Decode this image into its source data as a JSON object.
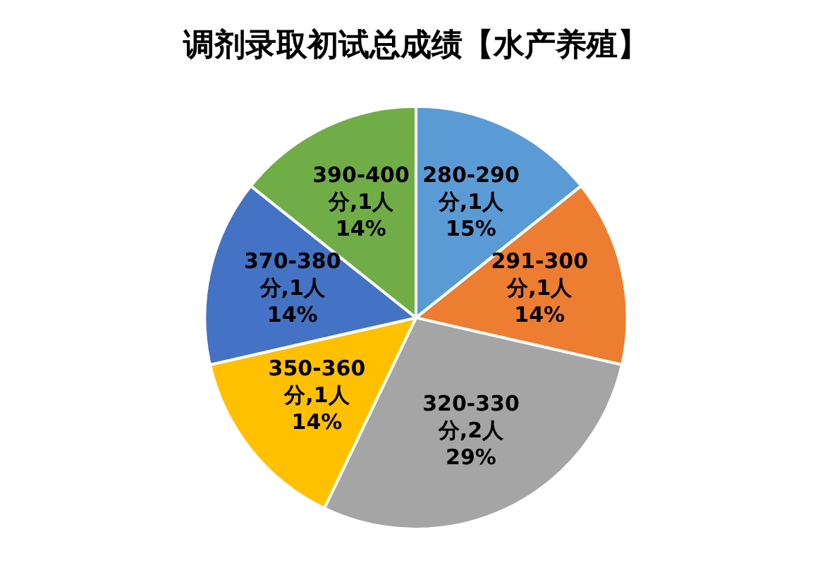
{
  "chart_data": {
    "type": "pie",
    "title": "调剂录取初试总成绩【水产养殖】",
    "categories": [
      "280-290分",
      "291-300分",
      "320-330分",
      "350-360分",
      "370-380分",
      "390-400分"
    ],
    "values": [
      1,
      1,
      2,
      1,
      1,
      1
    ],
    "value_labels": [
      "1人 15%",
      "1人 14%",
      "2人 29%",
      "1人 14%",
      "1人 14%",
      "1人 14%"
    ],
    "colors": [
      "#5b9bd5",
      "#ed7d31",
      "#a5a5a5",
      "#ffc000",
      "#4472c4",
      "#70ad47"
    ],
    "legend": false
  }
}
